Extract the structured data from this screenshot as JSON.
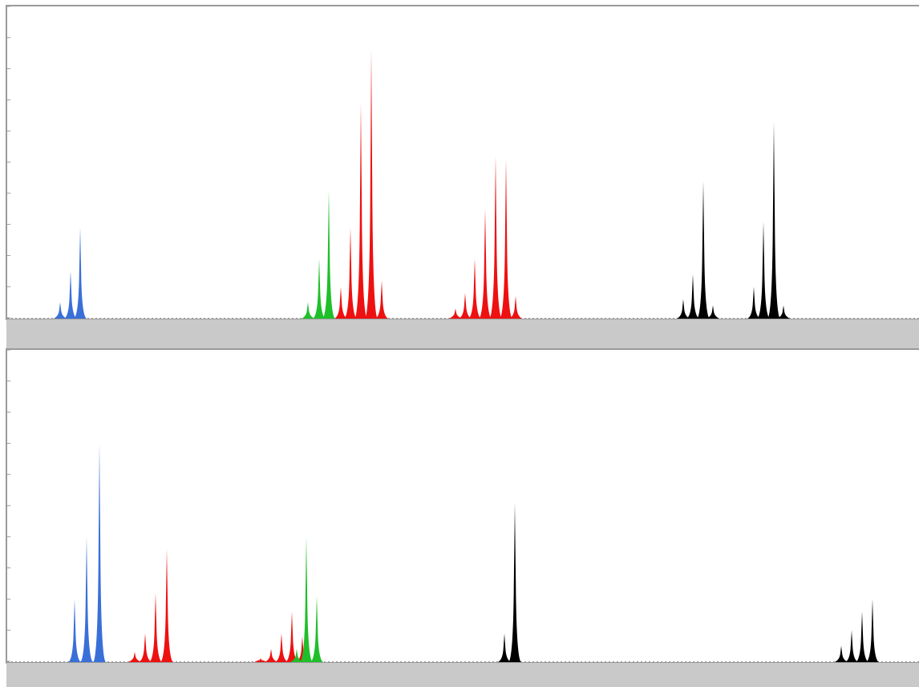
{
  "chart_data": [
    {
      "type": "peaks",
      "xlim": [
        0,
        1146
      ],
      "ylim": [
        0,
        100
      ],
      "yticks": [
        0,
        10,
        20,
        30,
        40,
        50,
        60,
        70,
        80,
        90,
        100
      ],
      "series": [
        {
          "color": "#3a6fd8",
          "x": [
            75,
            88,
            100
          ],
          "values": [
            5,
            15,
            29
          ]
        },
        {
          "color": "#1fbf2a",
          "x": [
            384,
            398,
            410
          ],
          "values": [
            5,
            19,
            41
          ]
        },
        {
          "color": "#ee1111",
          "x": [
            425,
            437,
            450,
            463,
            476,
            568,
            580,
            592,
            605,
            618,
            631,
            643
          ],
          "values": [
            10,
            29,
            69,
            86,
            12,
            3,
            8,
            19,
            35,
            52,
            51,
            7
          ]
        },
        {
          "color": "#000000",
          "x": [
            852,
            864,
            877,
            889,
            940,
            952,
            965,
            977
          ],
          "values": [
            6,
            14,
            44,
            4,
            10,
            31,
            63,
            4
          ]
        }
      ]
    },
    {
      "type": "peaks",
      "xlim": [
        0,
        1146
      ],
      "ylim": [
        0,
        100
      ],
      "yticks": [
        0,
        10,
        20,
        30,
        40,
        50,
        60,
        70,
        80,
        90,
        100
      ],
      "series": [
        {
          "color": "#3a6fd8",
          "x": [
            93,
            108,
            124
          ],
          "values": [
            20,
            40,
            70
          ]
        },
        {
          "color": "#ee1111",
          "x": [
            168,
            181,
            194,
            208,
            325,
            338,
            351,
            364,
            377
          ],
          "values": [
            3,
            9,
            22,
            36,
            1,
            4,
            9,
            16,
            8
          ]
        },
        {
          "color": "#1fbf2a",
          "x": [
            370,
            382,
            395
          ],
          "values": [
            4,
            40,
            21
          ]
        },
        {
          "color": "#000000",
          "x": [
            629,
            642,
            1049,
            1062,
            1075,
            1088
          ],
          "values": [
            9,
            51,
            5,
            10,
            16,
            20
          ]
        }
      ]
    }
  ]
}
